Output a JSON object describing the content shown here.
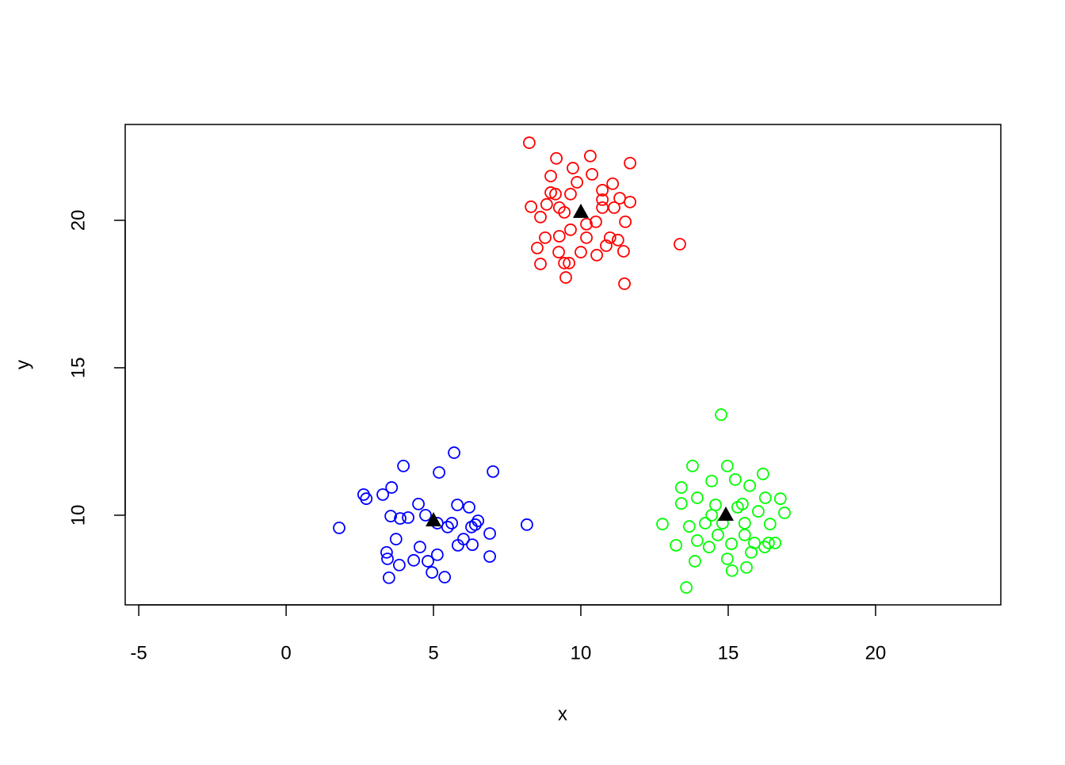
{
  "chart_data": {
    "type": "scatter",
    "xlabel": "x",
    "ylabel": "y",
    "xlim": [
      -5.46,
      24.25
    ],
    "ylim": [
      6.96,
      23.25
    ],
    "xticks": [
      -5,
      0,
      5,
      10,
      15,
      20
    ],
    "yticks": [
      10,
      15,
      20
    ],
    "series": [
      {
        "color": "#ff0000",
        "marker": "circle",
        "x": [
          8.25,
          9.17,
          10.32,
          11.67,
          8.98,
          9.73,
          10.38,
          11.08,
          8.31,
          8.63,
          8.84,
          9.65,
          10.73,
          11.32,
          11.67,
          9.44,
          10.73,
          11.13,
          11.51,
          8.79,
          9.27,
          9.65,
          10.19,
          10.99,
          11.26,
          8.52,
          9.25,
          10.0,
          10.54,
          11.45,
          8.63,
          9.44,
          9.6,
          9.49,
          11.48,
          13.36,
          8.98,
          10.19,
          9.87,
          9.27,
          10.51,
          10.73,
          9.14,
          10.86
        ],
        "y": [
          22.63,
          22.1,
          22.18,
          21.94,
          21.5,
          21.77,
          21.56,
          21.24,
          20.46,
          20.11,
          20.54,
          20.89,
          21.02,
          20.75,
          20.62,
          20.27,
          20.43,
          20.43,
          19.95,
          19.41,
          19.46,
          19.68,
          19.41,
          19.41,
          19.33,
          19.06,
          18.92,
          18.92,
          18.82,
          18.95,
          18.52,
          18.55,
          18.55,
          18.06,
          17.85,
          19.19,
          20.94,
          19.87,
          21.29,
          20.43,
          19.95,
          20.7,
          20.89,
          19.14
        ]
      },
      {
        "color": "#0000ff",
        "marker": "circle",
        "x": [
          1.8,
          2.63,
          2.72,
          3.28,
          3.58,
          3.98,
          5.7,
          5.19,
          7.02,
          8.17,
          3.49,
          3.84,
          4.95,
          5.38,
          6.91,
          6.21,
          6.51,
          5.81,
          4.73,
          4.14,
          3.44,
          3.55,
          3.73,
          4.54,
          5.13,
          5.83,
          6.29,
          6.91,
          4.33,
          4.81,
          4.49,
          5.13,
          5.48,
          6.02,
          3.87,
          6.32,
          5.62,
          3.41,
          6.42
        ],
        "y": [
          9.57,
          10.7,
          10.56,
          10.7,
          10.94,
          11.67,
          12.12,
          11.45,
          11.48,
          9.68,
          7.88,
          8.31,
          8.06,
          7.9,
          8.6,
          10.27,
          9.81,
          10.35,
          10.0,
          9.92,
          8.52,
          9.97,
          9.19,
          8.92,
          8.66,
          8.98,
          9.6,
          9.38,
          8.47,
          8.44,
          10.38,
          9.73,
          9.6,
          9.19,
          9.89,
          9.0,
          9.73,
          8.74,
          9.68
        ]
      },
      {
        "color": "#00ff00",
        "marker": "circle",
        "x": [
          14.76,
          13.58,
          12.77,
          13.23,
          13.79,
          14.97,
          16.18,
          16.91,
          16.59,
          15.62,
          15.13,
          13.87,
          13.41,
          14.44,
          15.24,
          15.73,
          16.26,
          16.77,
          13.41,
          13.95,
          14.57,
          15.48,
          16.02,
          13.68,
          14.22,
          14.81,
          15.56,
          16.42,
          13.95,
          14.35,
          15.11,
          15.89,
          16.24,
          14.97,
          15.78,
          14.44,
          15.32,
          14.65,
          15.56,
          16.37
        ],
        "y": [
          13.41,
          7.55,
          9.7,
          8.98,
          11.67,
          11.67,
          11.4,
          10.08,
          9.06,
          8.23,
          8.12,
          8.44,
          10.94,
          11.16,
          11.21,
          11.0,
          10.59,
          10.56,
          10.4,
          10.59,
          10.35,
          10.38,
          10.13,
          9.62,
          9.73,
          9.73,
          9.73,
          9.7,
          9.14,
          8.92,
          9.03,
          9.06,
          8.92,
          8.52,
          8.74,
          10.0,
          10.27,
          9.33,
          9.33,
          9.06
        ]
      },
      {
        "color": "#000000",
        "marker": "triangle",
        "x": [
          10.0,
          5.0,
          14.92
        ],
        "y": [
          20.27,
          9.81,
          10.0
        ]
      }
    ]
  }
}
